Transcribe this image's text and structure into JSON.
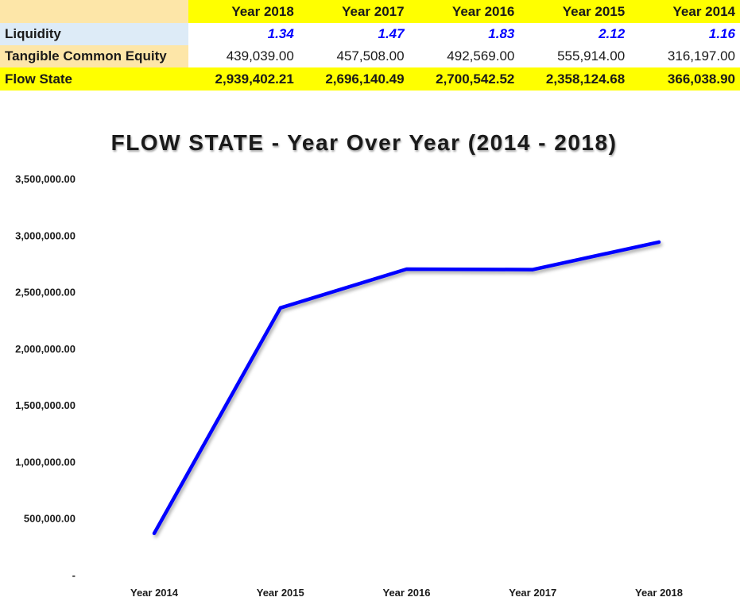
{
  "table": {
    "header": [
      "",
      "Year 2018",
      "Year 2017",
      "Year 2016",
      "Year 2015",
      "Year 2014"
    ],
    "rows": [
      {
        "label": "Liquidity",
        "values": [
          "1.34",
          "1.47",
          "1.83",
          "2.12",
          "1.16"
        ]
      },
      {
        "label": "Tangible Common Equity",
        "values": [
          "439,039.00",
          "457,508.00",
          "492,569.00",
          "555,914.00",
          "316,197.00"
        ]
      },
      {
        "label": "Flow State",
        "values": [
          "2,939,402.21",
          "2,696,140.49",
          "2,700,542.52",
          "2,358,124.68",
          "366,038.90"
        ]
      }
    ]
  },
  "colors": {
    "header_fill": "#ffff00",
    "label_fill_tan": "#fde6a8",
    "label_fill_blue": "#ddebf7",
    "liquidity_text": "#0000ff",
    "line": "#0000ff"
  },
  "chart_data": {
    "type": "line",
    "title": "FLOW STATE - Year Over Year (2014 - 2018)",
    "categories": [
      "Year 2014",
      "Year 2015",
      "Year 2016",
      "Year 2017",
      "Year 2018"
    ],
    "series": [
      {
        "values": [
          366038.9,
          2358124.68,
          2700542.52,
          2696140.49,
          2939402.21
        ]
      }
    ],
    "y_ticks": [
      0,
      500000,
      1000000,
      1500000,
      2000000,
      2500000,
      3000000,
      3500000
    ],
    "y_tick_labels": [
      "-",
      "500,000.00",
      "1,000,000.00",
      "1,500,000.00",
      "2,000,000.00",
      "2,500,000.00",
      "3,000,000.00",
      "3,500,000.00"
    ],
    "ylim": [
      0,
      3500000
    ],
    "grid": false,
    "legend": "none"
  }
}
